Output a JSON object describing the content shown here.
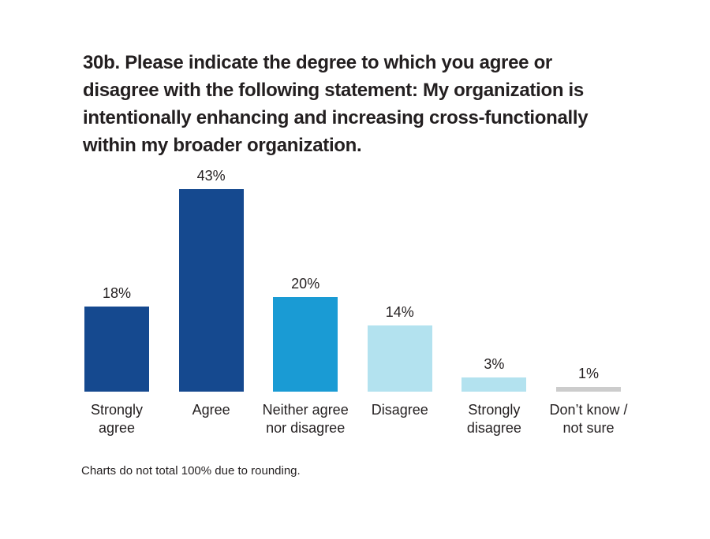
{
  "chart_data": {
    "type": "bar",
    "title": "30b. Please indicate the degree to which you agree or disagree with the following statement: My organization is intentionally enhancing and increasing cross-functionally within my broader organization.",
    "categories": [
      "Strongly agree",
      "Agree",
      "Neither agree nor disagree",
      "Disagree",
      "Strongly disagree",
      "Don’t know / not sure"
    ],
    "values": [
      18,
      43,
      20,
      14,
      3,
      1
    ],
    "value_labels": [
      "18%",
      "43%",
      "20%",
      "14%",
      "3%",
      "1%"
    ],
    "colors": [
      "#15498f",
      "#15498f",
      "#1a9bd4",
      "#b3e2ef",
      "#b3e2ef",
      "#cccccc"
    ],
    "note": "Charts do not total 100% due to rounding."
  }
}
